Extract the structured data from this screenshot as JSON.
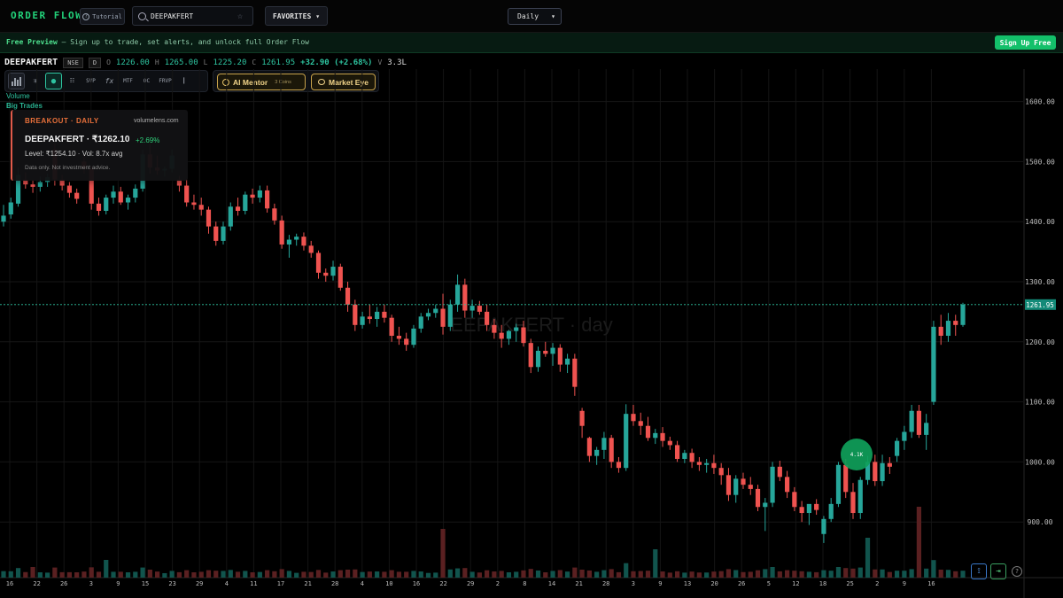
{
  "nav": {
    "logo": "ORDER FLOW",
    "tutorial_label": "Tutorial",
    "search_value": "DEEPAKFERT",
    "favorites_label": "FAVORITES",
    "interval_value": "Daily"
  },
  "banner": {
    "bold": "Free Preview",
    "text": " — Sign up to trade, set alerts, and unlock full Order Flow",
    "signup_label": "Sign Up Free"
  },
  "symbol": {
    "name": "DEEPAKFERT",
    "exchange": "NSE",
    "timeframe": "D",
    "o_label": "O",
    "open": "1226.00",
    "h_label": "H",
    "high": "1265.00",
    "l_label": "L",
    "low": "1225.20",
    "c_label": "C",
    "close": "1261.95",
    "change": "+32.90 (+2.68%)",
    "v_label": "V",
    "volume": "3.3L"
  },
  "toolbar": {
    "svp": "SVP",
    "fx": "fx",
    "mtf": "MTF",
    "oc": "OC",
    "frvp": "FRVP",
    "ai_mentor": "AI Mentor",
    "coins": "3 Coins",
    "market_eye": "Market Eye"
  },
  "labels": {
    "volume": "Volume",
    "big_trades": "Big Trades"
  },
  "card": {
    "tag": "BREAKOUT · DAILY",
    "site": "volumelens.com",
    "title": "DEEPAKFERT · ₹1262.10",
    "pct": "+2.69%",
    "level": "Level: ₹1254.10 · Vol: 8.7x avg",
    "note": "Data only. Not investment advice."
  },
  "watermark": "EEPAKFERT · day",
  "colors": {
    "up": "#26a69a",
    "down": "#ef5350",
    "accent": "#22d27a"
  },
  "chart_data": {
    "type": "candlestick",
    "y_ticks": [
      "1600.00",
      "1500.00",
      "1400.00",
      "1300.00",
      "1200.00",
      "1100.00",
      "1000.00",
      "900.00"
    ],
    "ylim": [
      780,
      1650
    ],
    "x_ticks": [
      "16",
      "22",
      "26",
      "3",
      "9",
      "15",
      "23",
      "29",
      "4",
      "11",
      "17",
      "21",
      "28",
      "4",
      "10",
      "16",
      "22",
      "29",
      "2",
      "8",
      "14",
      "21",
      "28",
      "3",
      "9",
      "13",
      "20",
      "26",
      "5",
      "12",
      "18",
      "25",
      "2",
      "9",
      "16"
    ],
    "last_price": "1261.95",
    "bubble_label": "4.1K",
    "candles": [
      [
        1400,
        1428,
        1392,
        1410
      ],
      [
        1412,
        1440,
        1405,
        1432
      ],
      [
        1430,
        1490,
        1425,
        1478
      ],
      [
        1470,
        1482,
        1455,
        1462
      ],
      [
        1462,
        1470,
        1448,
        1458
      ],
      [
        1458,
        1475,
        1450,
        1466
      ],
      [
        1466,
        1480,
        1458,
        1474
      ],
      [
        1520,
        1530,
        1460,
        1470
      ],
      [
        1470,
        1478,
        1452,
        1460
      ],
      [
        1460,
        1466,
        1440,
        1448
      ],
      [
        1448,
        1455,
        1430,
        1438
      ],
      [
        1500,
        1512,
        1480,
        1488
      ],
      [
        1488,
        1492,
        1420,
        1430
      ],
      [
        1430,
        1440,
        1410,
        1418
      ],
      [
        1418,
        1445,
        1412,
        1440
      ],
      [
        1440,
        1460,
        1430,
        1450
      ],
      [
        1450,
        1458,
        1428,
        1432
      ],
      [
        1432,
        1445,
        1420,
        1440
      ],
      [
        1440,
        1462,
        1432,
        1455
      ],
      [
        1455,
        1520,
        1450,
        1512
      ],
      [
        1512,
        1530,
        1480,
        1490
      ],
      [
        1490,
        1510,
        1478,
        1485
      ],
      [
        1485,
        1492,
        1475,
        1488
      ],
      [
        1488,
        1520,
        1482,
        1510
      ],
      [
        1470,
        1476,
        1450,
        1460
      ],
      [
        1460,
        1470,
        1425,
        1432
      ],
      [
        1432,
        1445,
        1420,
        1428
      ],
      [
        1428,
        1440,
        1410,
        1420
      ],
      [
        1420,
        1425,
        1380,
        1392
      ],
      [
        1392,
        1400,
        1360,
        1368
      ],
      [
        1368,
        1400,
        1362,
        1392
      ],
      [
        1392,
        1432,
        1385,
        1425
      ],
      [
        1425,
        1440,
        1410,
        1418
      ],
      [
        1418,
        1450,
        1412,
        1445
      ],
      [
        1445,
        1455,
        1430,
        1440
      ],
      [
        1440,
        1460,
        1432,
        1452
      ],
      [
        1452,
        1460,
        1415,
        1422
      ],
      [
        1422,
        1430,
        1395,
        1402
      ],
      [
        1402,
        1410,
        1355,
        1362
      ],
      [
        1362,
        1378,
        1340,
        1370
      ],
      [
        1370,
        1380,
        1360,
        1375
      ],
      [
        1375,
        1382,
        1352,
        1360
      ],
      [
        1360,
        1368,
        1340,
        1348
      ],
      [
        1348,
        1352,
        1305,
        1315
      ],
      [
        1315,
        1322,
        1300,
        1310
      ],
      [
        1310,
        1335,
        1302,
        1325
      ],
      [
        1325,
        1330,
        1285,
        1290
      ],
      [
        1290,
        1300,
        1250,
        1262
      ],
      [
        1262,
        1270,
        1218,
        1228
      ],
      [
        1228,
        1250,
        1222,
        1242
      ],
      [
        1242,
        1262,
        1230,
        1238
      ],
      [
        1238,
        1258,
        1225,
        1250
      ],
      [
        1250,
        1262,
        1232,
        1240
      ],
      [
        1240,
        1245,
        1200,
        1210
      ],
      [
        1210,
        1225,
        1195,
        1205
      ],
      [
        1205,
        1215,
        1185,
        1195
      ],
      [
        1195,
        1228,
        1190,
        1222
      ],
      [
        1222,
        1248,
        1215,
        1242
      ],
      [
        1242,
        1255,
        1236,
        1248
      ],
      [
        1248,
        1262,
        1240,
        1255
      ],
      [
        1255,
        1280,
        1212,
        1225
      ],
      [
        1225,
        1270,
        1218,
        1262
      ],
      [
        1262,
        1312,
        1250,
        1295
      ],
      [
        1295,
        1305,
        1240,
        1252
      ],
      [
        1252,
        1270,
        1240,
        1260
      ],
      [
        1260,
        1268,
        1245,
        1250
      ],
      [
        1250,
        1262,
        1218,
        1228
      ],
      [
        1228,
        1238,
        1205,
        1215
      ],
      [
        1215,
        1228,
        1190,
        1205
      ],
      [
        1205,
        1220,
        1195,
        1218
      ],
      [
        1218,
        1230,
        1200,
        1224
      ],
      [
        1224,
        1235,
        1192,
        1198
      ],
      [
        1198,
        1205,
        1148,
        1158
      ],
      [
        1158,
        1192,
        1150,
        1185
      ],
      [
        1185,
        1200,
        1175,
        1180
      ],
      [
        1180,
        1198,
        1160,
        1190
      ],
      [
        1190,
        1196,
        1150,
        1162
      ],
      [
        1162,
        1180,
        1148,
        1172
      ],
      [
        1172,
        1180,
        1110,
        1125
      ],
      [
        1085,
        1090,
        1040,
        1060
      ],
      [
        1040,
        1042,
        1000,
        1010
      ],
      [
        1010,
        1025,
        995,
        1020
      ],
      [
        1020,
        1050,
        1005,
        1040
      ],
      [
        1040,
        1045,
        990,
        1000
      ],
      [
        1000,
        1008,
        982,
        990
      ],
      [
        990,
        1096,
        985,
        1080
      ],
      [
        1080,
        1095,
        1060,
        1068
      ],
      [
        1068,
        1082,
        1045,
        1060
      ],
      [
        1060,
        1075,
        1035,
        1040
      ],
      [
        1040,
        1055,
        1030,
        1048
      ],
      [
        1048,
        1058,
        1025,
        1035
      ],
      [
        1035,
        1042,
        1020,
        1028
      ],
      [
        1028,
        1035,
        1000,
        1005
      ],
      [
        1005,
        1020,
        998,
        1015
      ],
      [
        1015,
        1022,
        990,
        1000
      ],
      [
        1000,
        1008,
        985,
        995
      ],
      [
        995,
        1005,
        982,
        998
      ],
      [
        998,
        1012,
        980,
        990
      ],
      [
        990,
        998,
        962,
        978
      ],
      [
        978,
        990,
        935,
        945
      ],
      [
        945,
        978,
        932,
        972
      ],
      [
        972,
        982,
        955,
        962
      ],
      [
        962,
        975,
        945,
        955
      ],
      [
        955,
        962,
        918,
        925
      ],
      [
        925,
        940,
        885,
        932
      ],
      [
        932,
        1000,
        925,
        992
      ],
      [
        992,
        1002,
        968,
        975
      ],
      [
        975,
        985,
        940,
        950
      ],
      [
        950,
        958,
        918,
        925
      ],
      [
        925,
        935,
        900,
        915
      ],
      [
        915,
        925,
        895,
        930
      ],
      [
        930,
        938,
        912,
        920
      ],
      [
        880,
        910,
        865,
        905
      ],
      [
        905,
        940,
        900,
        930
      ],
      [
        930,
        1000,
        925,
        995
      ],
      [
        995,
        1005,
        940,
        950
      ],
      [
        950,
        965,
        905,
        915
      ],
      [
        915,
        975,
        905,
        970
      ],
      [
        970,
        1010,
        962,
        1000
      ],
      [
        1000,
        1012,
        960,
        968
      ],
      [
        968,
        1012,
        960,
        998
      ],
      [
        998,
        1008,
        980,
        992
      ],
      [
        1010,
        1040,
        1000,
        1035
      ],
      [
        1035,
        1060,
        1020,
        1050
      ],
      [
        1050,
        1095,
        1040,
        1085
      ],
      [
        1085,
        1095,
        1040,
        1045
      ],
      [
        1045,
        1080,
        1020,
        1065
      ],
      [
        1100,
        1235,
        1095,
        1225
      ],
      [
        1225,
        1245,
        1195,
        1210
      ],
      [
        1210,
        1248,
        1200,
        1235
      ],
      [
        1235,
        1245,
        1210,
        1228
      ],
      [
        1228,
        1265,
        1225,
        1262
      ]
    ]
  }
}
